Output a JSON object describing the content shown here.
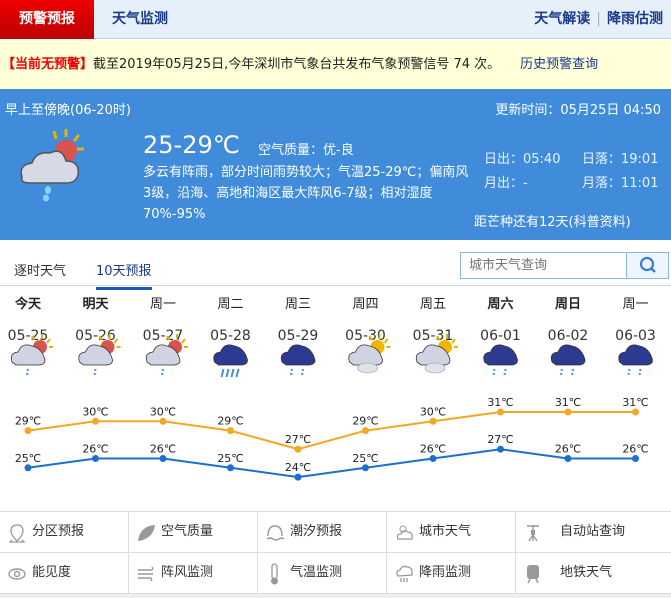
{
  "nav": {
    "tab_active": "预警预报",
    "tab2": "天气监测",
    "right1": "天气解读",
    "right2": "降雨估测"
  },
  "warning": {
    "status": "【当前无预警】",
    "text": "截至2019年05月25日,今年深圳市气象台共发布气象预警信号 74 次。",
    "history_link": "历史预警查询"
  },
  "today": {
    "period": "早上至傍晚(06-20时)",
    "update": "更新时间：05月25日 04:50",
    "temp": "25-29℃",
    "air_quality": "空气质量：优-良",
    "description": "多云有阵雨，部分时间雨势较大；气温25-29℃；偏南风3级，沿海、高地和海区最大阵风6-7级；相对湿度70%-95%",
    "sunrise": "日出：05:40",
    "sunset": "日落：19:01",
    "moonrise": "月出：-",
    "moonset": "月落：11:01",
    "solar_term": "距芒种还有12天(科普资料)",
    "icon": "cloudy-shower-icon"
  },
  "tabs": {
    "hourly": "逐时天气",
    "ten_day": "10天预报",
    "search_placeholder": "城市天气查询"
  },
  "colors": {
    "high": "#f5a623",
    "low": "#1a6fd1",
    "accent": "#418cda"
  },
  "chart_data": {
    "type": "line",
    "categories": [
      "05-25",
      "05-26",
      "05-27",
      "05-28",
      "05-29",
      "05-30",
      "05-31",
      "06-01",
      "06-02",
      "06-03"
    ],
    "days": [
      "今天",
      "明天",
      "周一",
      "周二",
      "周三",
      "周四",
      "周五",
      "周六",
      "周日",
      "周一"
    ],
    "bold_days": [
      0,
      1,
      7,
      8
    ],
    "icons": [
      "partly-cloudy-shower",
      "partly-cloudy-shower",
      "partly-cloudy-shower",
      "heavy-rain",
      "shower",
      "partly-cloudy",
      "partly-cloudy",
      "shower",
      "shower",
      "shower"
    ],
    "unit": "℃",
    "series": [
      {
        "values": [
          29,
          30,
          30,
          29,
          27,
          29,
          30,
          31,
          31,
          31
        ]
      },
      {
        "values": [
          25,
          26,
          26,
          25,
          24,
          25,
          26,
          27,
          26,
          26
        ]
      }
    ]
  },
  "links": [
    {
      "label": "分区预报",
      "icon": "map-pin-icon"
    },
    {
      "label": "空气质量",
      "icon": "leaf-icon"
    },
    {
      "label": "潮汐预报",
      "icon": "tide-icon"
    },
    {
      "label": "城市天气",
      "icon": "sun-cloud-icon"
    },
    {
      "label": "自动站查询",
      "icon": "weather-station-icon"
    },
    {
      "label": "能见度",
      "icon": "eye-icon"
    },
    {
      "label": "阵风监测",
      "icon": "wind-icon"
    },
    {
      "label": "气温监测",
      "icon": "thermometer-icon"
    },
    {
      "label": "降雨监测",
      "icon": "rain-cloud-icon"
    },
    {
      "label": "地铁天气",
      "icon": "train-icon"
    }
  ]
}
